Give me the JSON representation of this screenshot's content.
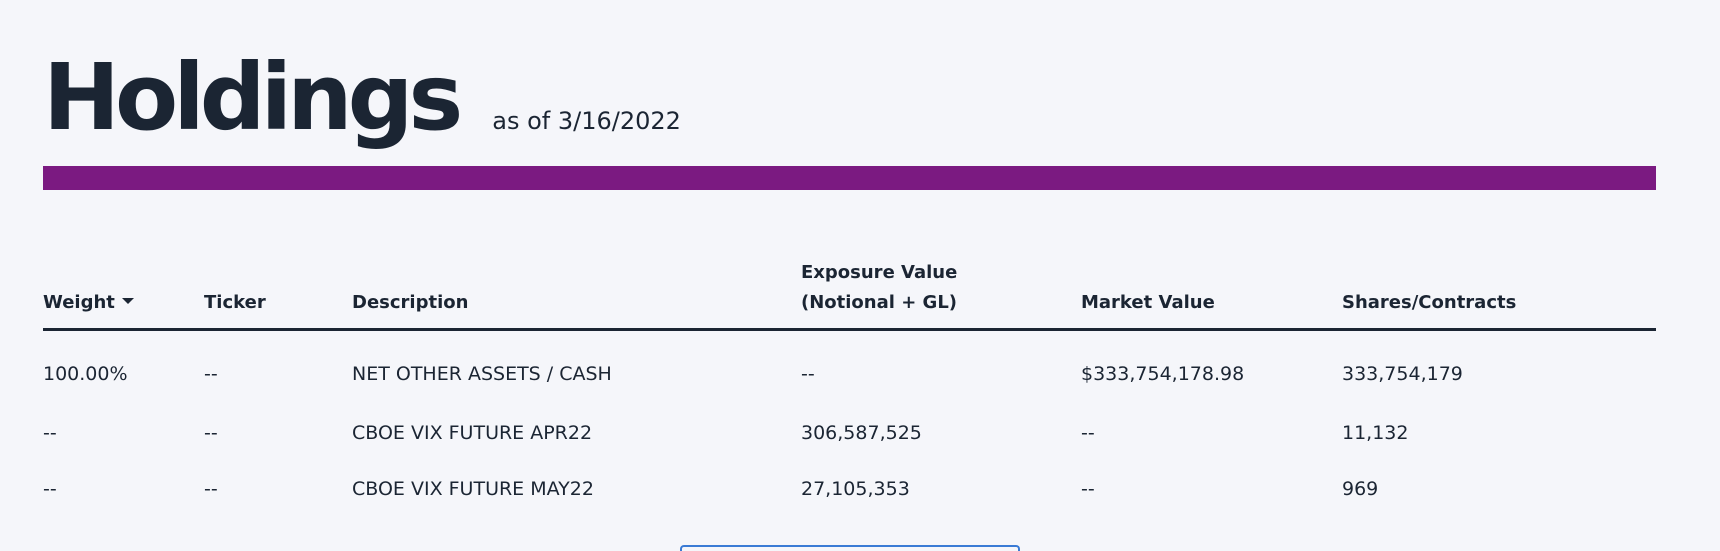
{
  "header": {
    "title": "Holdings",
    "as_of": "as of 3/16/2022"
  },
  "colors": {
    "accent": "#7b1a81",
    "text": "#1b2533",
    "background": "#f5f6fa",
    "button_border": "#3a7bd5"
  },
  "table": {
    "columns": {
      "weight": "Weight",
      "ticker": "Ticker",
      "description": "Description",
      "exposure_line1": "Exposure Value",
      "exposure_line2": "(Notional + GL)",
      "market_value": "Market Value",
      "shares": "Shares/Contracts"
    },
    "sort_icon": "caret-down-icon",
    "rows": [
      {
        "weight": "100.00%",
        "ticker": "--",
        "description": "NET OTHER ASSETS / CASH",
        "exposure": "--",
        "market_value": "$333,754,178.98",
        "shares": "333,754,179"
      },
      {
        "weight": "--",
        "ticker": "--",
        "description": "CBOE VIX FUTURE APR22",
        "exposure": "306,587,525",
        "market_value": "--",
        "shares": "11,132"
      },
      {
        "weight": "--",
        "ticker": "--",
        "description": "CBOE VIX FUTURE MAY22",
        "exposure": "27,105,353",
        "market_value": "--",
        "shares": "969"
      }
    ]
  }
}
